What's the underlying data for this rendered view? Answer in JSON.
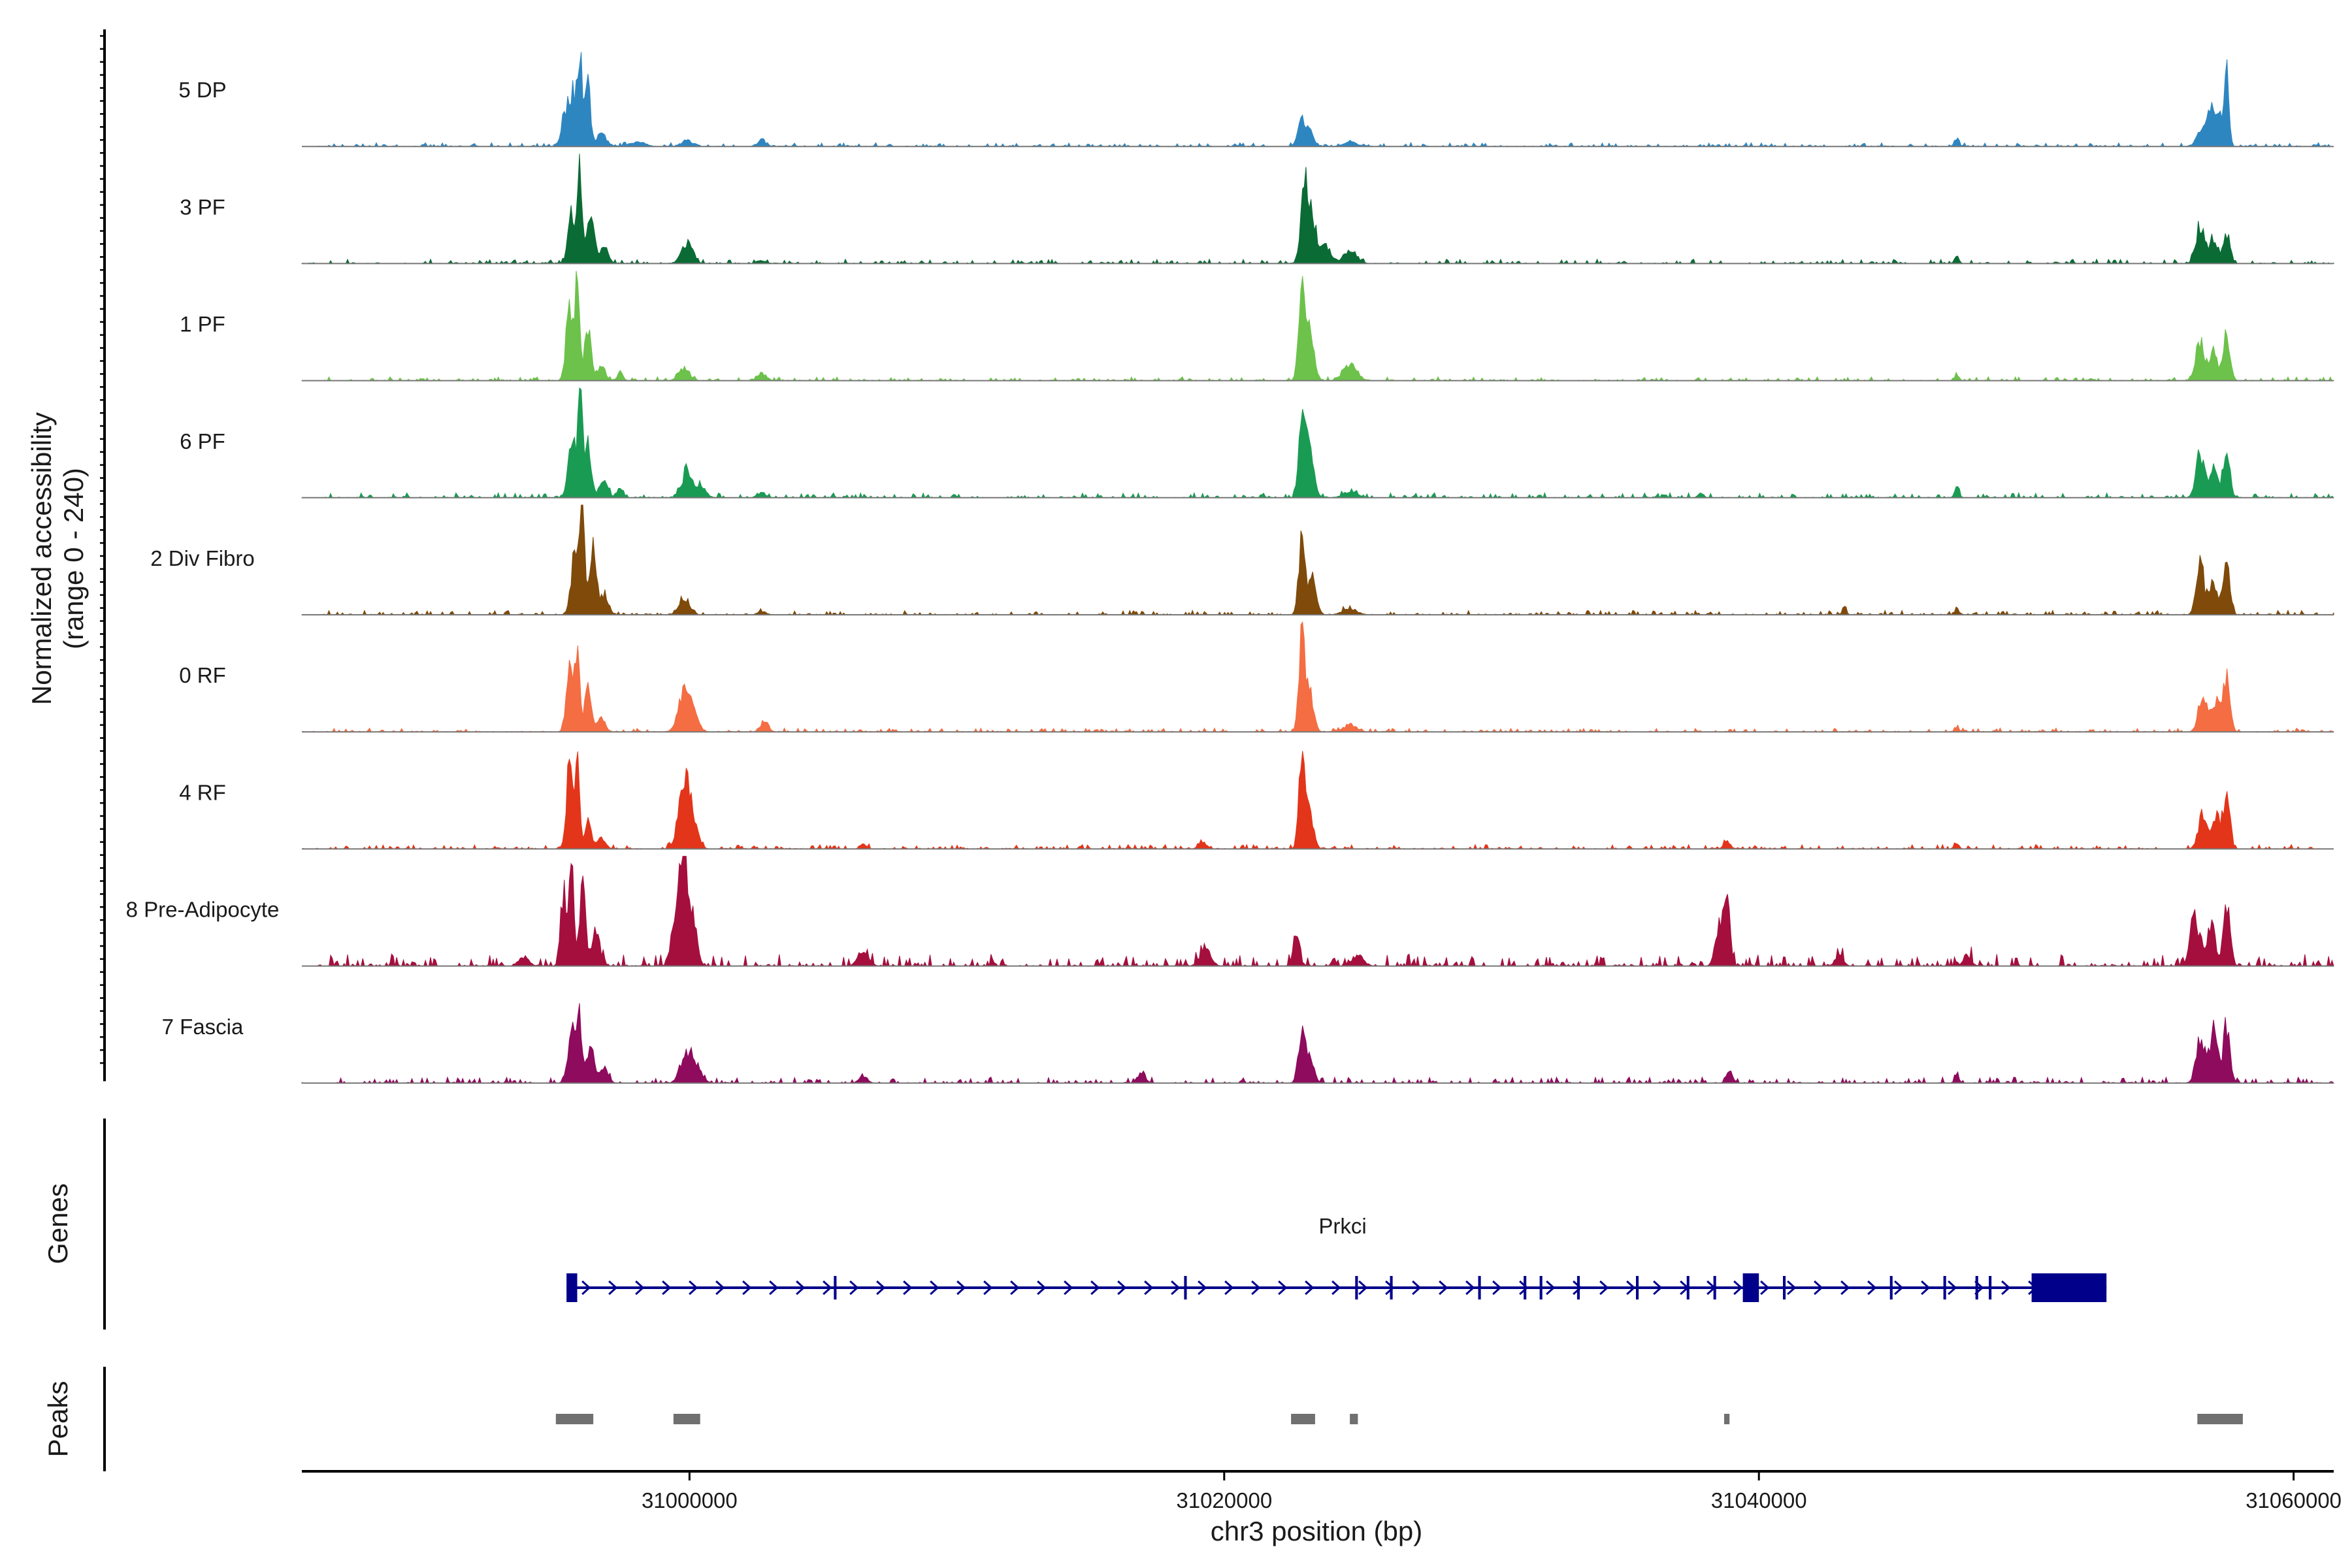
{
  "chart_data": {
    "type": "area",
    "ylabel_line1": "Normalized accessibility",
    "ylabel_line2": "(range 0 - 240)",
    "y_range": [
      0,
      240
    ],
    "xlabel": "chr3 position (bp)",
    "xlim": [
      30985500,
      31061500
    ],
    "xticks": [
      31000000,
      31020000,
      31040000,
      31060000
    ],
    "xtick_labels": [
      "31000000",
      "31020000",
      "31040000",
      "31060000"
    ],
    "panel_labels": {
      "genes": "Genes",
      "peaks": "Peaks"
    },
    "tracks": [
      {
        "name": "5 DP",
        "color": "#2E86C1",
        "noise": 0.035,
        "peaks": [
          [
            30995600,
            130,
            140
          ],
          [
            30995900,
            232,
            90
          ],
          [
            30996200,
            150,
            100
          ],
          [
            30995300,
            60,
            120
          ],
          [
            30996700,
            35,
            150
          ],
          [
            30998000,
            10,
            300
          ],
          [
            30999900,
            12,
            200
          ],
          [
            31002700,
            13,
            150
          ],
          [
            31022900,
            55,
            150
          ],
          [
            31023200,
            30,
            150
          ],
          [
            31024700,
            10,
            250
          ],
          [
            31047400,
            20,
            80
          ],
          [
            31056600,
            45,
            200
          ],
          [
            31057200,
            75,
            180
          ],
          [
            31057500,
            150,
            80
          ],
          [
            31056900,
            55,
            120
          ]
        ]
      },
      {
        "name": "3 PF",
        "color": "#0B6B35",
        "noise": 0.04,
        "peaks": [
          [
            30995600,
            120,
            140
          ],
          [
            30995900,
            220,
            90
          ],
          [
            30996300,
            140,
            120
          ],
          [
            30996800,
            40,
            150
          ],
          [
            30999900,
            50,
            200
          ],
          [
            31002700,
            8,
            150
          ],
          [
            31023000,
            195,
            130
          ],
          [
            31023300,
            100,
            150
          ],
          [
            31023800,
            40,
            200
          ],
          [
            31024700,
            25,
            250
          ],
          [
            31047400,
            18,
            80
          ],
          [
            31056500,
            90,
            160
          ],
          [
            31057000,
            60,
            160
          ],
          [
            31057500,
            70,
            120
          ]
        ]
      },
      {
        "name": "1 PF",
        "color": "#6CC24A",
        "noise": 0.035,
        "peaks": [
          [
            30995500,
            170,
            120
          ],
          [
            30995800,
            240,
            90
          ],
          [
            30996200,
            130,
            120
          ],
          [
            30996700,
            30,
            150
          ],
          [
            30997400,
            20,
            100
          ],
          [
            30999800,
            28,
            200
          ],
          [
            31002700,
            18,
            150
          ],
          [
            31022900,
            195,
            120
          ],
          [
            31023200,
            120,
            150
          ],
          [
            31024700,
            40,
            250
          ],
          [
            31047400,
            15,
            80
          ],
          [
            31056500,
            90,
            160
          ],
          [
            31057000,
            70,
            160
          ],
          [
            31057500,
            110,
            120
          ]
        ]
      },
      {
        "name": "6 PF",
        "color": "#1A9B53",
        "noise": 0.045,
        "peaks": [
          [
            30995600,
            120,
            140
          ],
          [
            30995900,
            230,
            90
          ],
          [
            30996200,
            140,
            120
          ],
          [
            30996800,
            40,
            150
          ],
          [
            30997400,
            20,
            120
          ],
          [
            30999900,
            60,
            200
          ],
          [
            31000400,
            25,
            200
          ],
          [
            31002700,
            12,
            150
          ],
          [
            31022900,
            160,
            120
          ],
          [
            31023200,
            120,
            150
          ],
          [
            31024700,
            15,
            250
          ],
          [
            31037800,
            12,
            80
          ],
          [
            31047400,
            28,
            80
          ],
          [
            31056500,
            100,
            160
          ],
          [
            31057000,
            70,
            160
          ],
          [
            31057500,
            115,
            120
          ]
        ]
      },
      {
        "name": "2 Div Fibro",
        "color": "#7F4A0A",
        "noise": 0.04,
        "peaks": [
          [
            30995700,
            140,
            130
          ],
          [
            30996000,
            310,
            90
          ],
          [
            30996400,
            150,
            120
          ],
          [
            30996800,
            50,
            150
          ],
          [
            30999800,
            40,
            200
          ],
          [
            31002700,
            8,
            150
          ],
          [
            31022900,
            165,
            120
          ],
          [
            31023300,
            90,
            150
          ],
          [
            31024700,
            15,
            250
          ],
          [
            31043200,
            12,
            80
          ],
          [
            31047400,
            10,
            80
          ],
          [
            31056500,
            130,
            140
          ],
          [
            31057000,
            80,
            160
          ],
          [
            31057500,
            120,
            120
          ]
        ]
      },
      {
        "name": "0 RF",
        "color": "#F46D43",
        "noise": 0.035,
        "peaks": [
          [
            30995500,
            150,
            120
          ],
          [
            30995800,
            215,
            90
          ],
          [
            30996200,
            100,
            120
          ],
          [
            30996700,
            30,
            150
          ],
          [
            30999800,
            90,
            220
          ],
          [
            31000100,
            50,
            200
          ],
          [
            31002800,
            20,
            150
          ],
          [
            31022900,
            235,
            110
          ],
          [
            31023200,
            90,
            150
          ],
          [
            31024700,
            15,
            250
          ],
          [
            31047400,
            10,
            80
          ],
          [
            31056600,
            80,
            160
          ],
          [
            31057100,
            70,
            160
          ],
          [
            31057500,
            120,
            120
          ]
        ]
      },
      {
        "name": "4 RF",
        "color": "#E3351A",
        "noise": 0.04,
        "peaks": [
          [
            30995500,
            180,
            120
          ],
          [
            30995800,
            200,
            90
          ],
          [
            30996200,
            70,
            120
          ],
          [
            30996700,
            25,
            150
          ],
          [
            30999800,
            140,
            220
          ],
          [
            31000100,
            60,
            200
          ],
          [
            31006500,
            15,
            100
          ],
          [
            31019200,
            15,
            150
          ],
          [
            31022900,
            210,
            110
          ],
          [
            31023200,
            80,
            150
          ],
          [
            31038800,
            20,
            120
          ],
          [
            31047400,
            15,
            80
          ],
          [
            31056600,
            80,
            160
          ],
          [
            31057100,
            80,
            160
          ],
          [
            31057500,
            120,
            120
          ]
        ]
      },
      {
        "name": "8 Pre-Adipocyte",
        "color": "#A50F3E",
        "noise": 0.11,
        "peaks": [
          [
            30995300,
            170,
            110
          ],
          [
            30995600,
            240,
            90
          ],
          [
            30996000,
            190,
            110
          ],
          [
            30996500,
            80,
            150
          ],
          [
            30999500,
            130,
            160
          ],
          [
            30999800,
            220,
            140
          ],
          [
            31000100,
            120,
            160
          ],
          [
            30993800,
            22,
            180
          ],
          [
            31006500,
            35,
            200
          ],
          [
            31019300,
            40,
            200
          ],
          [
            31022700,
            70,
            120
          ],
          [
            31025000,
            25,
            200
          ],
          [
            31038500,
            90,
            140
          ],
          [
            31038800,
            175,
            110
          ],
          [
            31043000,
            25,
            150
          ],
          [
            31047800,
            25,
            150
          ],
          [
            31056300,
            110,
            160
          ],
          [
            31056900,
            95,
            160
          ],
          [
            31057500,
            140,
            120
          ]
        ]
      },
      {
        "name": "7 Fascia",
        "color": "#8E0B5E",
        "noise": 0.055,
        "peaks": [
          [
            30995600,
            120,
            140
          ],
          [
            30995900,
            150,
            100
          ],
          [
            30996300,
            100,
            120
          ],
          [
            30996800,
            40,
            150
          ],
          [
            30999900,
            70,
            220
          ],
          [
            31000300,
            30,
            200
          ],
          [
            31006500,
            18,
            150
          ],
          [
            31016900,
            25,
            150
          ],
          [
            31022900,
            110,
            130
          ],
          [
            31023200,
            60,
            150
          ],
          [
            31038900,
            28,
            120
          ],
          [
            31047400,
            18,
            80
          ],
          [
            31056500,
            100,
            160
          ],
          [
            31057000,
            120,
            160
          ],
          [
            31057500,
            140,
            120
          ]
        ]
      }
    ],
    "gene": {
      "name": "Prkci",
      "start": 30995400,
      "end": 31053000,
      "strand": "+",
      "color": "#00008B",
      "exons": [
        [
          30995400,
          30995800
        ],
        [
          31005400,
          31005500
        ],
        [
          31018500,
          31018600
        ],
        [
          31024900,
          31025000
        ],
        [
          31026200,
          31026300
        ],
        [
          31029500,
          31029600
        ],
        [
          31031200,
          31031300
        ],
        [
          31031800,
          31031900
        ],
        [
          31033200,
          31033300
        ],
        [
          31035400,
          31035500
        ],
        [
          31037300,
          31037400
        ],
        [
          31038300,
          31038400
        ],
        [
          31039400,
          31040000
        ],
        [
          31040900,
          31041000
        ],
        [
          31044900,
          31045000
        ],
        [
          31046900,
          31047000
        ],
        [
          31048100,
          31048200
        ],
        [
          31048600,
          31048700
        ],
        [
          31050200,
          31053000
        ]
      ]
    },
    "peak_regions": [
      [
        30995000,
        30996400
      ],
      [
        30999400,
        31000400
      ],
      [
        31022500,
        31023400
      ],
      [
        31024700,
        31025000
      ],
      [
        31038700,
        31038900
      ],
      [
        31056400,
        31058100
      ]
    ]
  }
}
